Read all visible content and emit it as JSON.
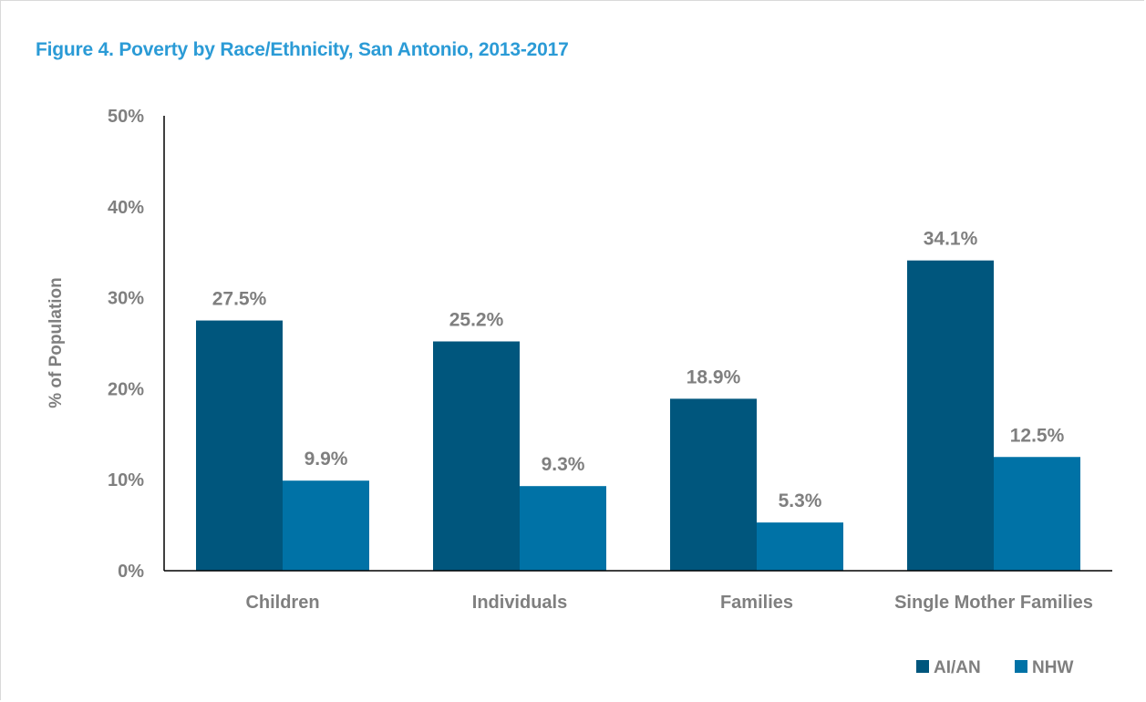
{
  "chart_data": {
    "type": "bar",
    "title": "Figure 4. Poverty by Race/Ethnicity, San Antonio, 2013-2017",
    "ylabel": "% of Population",
    "xlabel": "",
    "ylim": [
      0,
      50
    ],
    "yticks": [
      0,
      10,
      20,
      30,
      40,
      50
    ],
    "ytick_labels": [
      "0%",
      "10%",
      "20%",
      "30%",
      "40%",
      "50%"
    ],
    "categories": [
      "Children",
      "Individuals",
      "Families",
      "Single Mother Families"
    ],
    "series": [
      {
        "name": "AI/AN",
        "color": "#00567d",
        "values": [
          27.5,
          25.2,
          18.9,
          34.1
        ],
        "labels": [
          "27.5%",
          "25.2%",
          "18.9%",
          "34.1%"
        ]
      },
      {
        "name": "NHW",
        "color": "#0072a6",
        "values": [
          9.9,
          9.3,
          5.3,
          12.5
        ],
        "labels": [
          "9.9%",
          "9.3%",
          "5.3%",
          "12.5%"
        ]
      }
    ],
    "legend_position": "bottom-right",
    "grid": false
  },
  "colors": {
    "title": "#2b9bd6",
    "axis": "#000000",
    "text": "#7f7f7f"
  }
}
